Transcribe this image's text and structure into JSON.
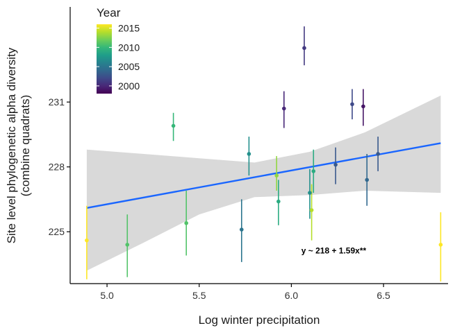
{
  "chart_data": {
    "type": "scatter",
    "xlabel": "Log winter precipitation",
    "ylabel_lines": [
      "Site level phylogenetic alpha diversity",
      "(combine quadrats)"
    ],
    "x_ticks": [
      5.0,
      5.5,
      6.0,
      6.5
    ],
    "x_tick_labels": [
      "5.0",
      "5.5",
      "6.0",
      "6.5"
    ],
    "y_ticks": [
      225,
      228,
      231
    ],
    "y_tick_labels": [
      "225",
      "228",
      "231"
    ],
    "xlim": [
      4.8,
      6.85
    ],
    "ylim": [
      222.6,
      235.4
    ],
    "legend": {
      "title": "Year",
      "placement": "top-left",
      "min": 1998,
      "max": 2016,
      "ticks": [
        2015,
        2010,
        2005,
        2000
      ],
      "tick_labels": [
        "2015",
        "2010",
        "2005",
        "2000"
      ],
      "colors": [
        "#440154",
        "#482878",
        "#3e4989",
        "#31688e",
        "#26828e",
        "#1f9e89",
        "#35b779",
        "#6ece58",
        "#b5de2b",
        "#fde725"
      ]
    },
    "points": [
      {
        "x": 4.89,
        "y": 224.6,
        "ylo": 222.8,
        "yhi": 226.2,
        "year": 2016
      },
      {
        "x": 5.11,
        "y": 224.4,
        "ylo": 222.9,
        "yhi": 225.8,
        "year": 2011
      },
      {
        "x": 5.36,
        "y": 229.9,
        "ylo": 229.2,
        "yhi": 230.5,
        "year": 2010
      },
      {
        "x": 5.43,
        "y": 225.4,
        "ylo": 223.9,
        "yhi": 226.9,
        "year": 2011
      },
      {
        "x": 5.73,
        "y": 225.1,
        "ylo": 223.6,
        "yhi": 226.5,
        "year": 2005
      },
      {
        "x": 5.77,
        "y": 228.6,
        "ylo": 227.6,
        "yhi": 229.4,
        "year": 2007
      },
      {
        "x": 5.92,
        "y": 227.6,
        "ylo": 226.9,
        "yhi": 228.5,
        "year": 2013
      },
      {
        "x": 5.93,
        "y": 226.4,
        "ylo": 225.3,
        "yhi": 227.4,
        "year": 2009
      },
      {
        "x": 5.96,
        "y": 230.7,
        "ylo": 229.8,
        "yhi": 231.5,
        "year": 2000
      },
      {
        "x": 6.07,
        "y": 233.5,
        "ylo": 232.7,
        "yhi": 234.5,
        "year": 2001
      },
      {
        "x": 6.1,
        "y": 226.8,
        "ylo": 225.6,
        "yhi": 227.9,
        "year": 2007
      },
      {
        "x": 6.11,
        "y": 226.0,
        "ylo": 224.6,
        "yhi": 227.2,
        "year": 2014
      },
      {
        "x": 6.12,
        "y": 227.8,
        "ylo": 226.8,
        "yhi": 228.8,
        "year": 2009
      },
      {
        "x": 6.24,
        "y": 228.1,
        "ylo": 227.2,
        "yhi": 228.9,
        "year": 2003
      },
      {
        "x": 6.33,
        "y": 230.9,
        "ylo": 230.2,
        "yhi": 231.6,
        "year": 2002
      },
      {
        "x": 6.39,
        "y": 230.8,
        "ylo": 229.9,
        "yhi": 231.6,
        "year": 1999
      },
      {
        "x": 6.41,
        "y": 227.4,
        "ylo": 226.2,
        "yhi": 228.6,
        "year": 2004
      },
      {
        "x": 6.47,
        "y": 228.6,
        "ylo": 227.8,
        "yhi": 229.4,
        "year": 2003
      },
      {
        "x": 6.81,
        "y": 224.4,
        "ylo": 222.7,
        "yhi": 225.9,
        "year": 2016
      }
    ],
    "fit": {
      "x": [
        4.89,
        6.81
      ],
      "y": [
        226.1,
        229.1
      ],
      "color": "#1a66ff"
    },
    "ci_band": {
      "x": [
        4.89,
        5.2,
        5.5,
        5.8,
        6.1,
        6.4,
        6.81
      ],
      "upper": [
        228.8,
        228.6,
        228.4,
        228.2,
        228.7,
        229.6,
        231.3
      ],
      "lower": [
        223.2,
        224.5,
        225.8,
        226.6,
        226.7,
        226.9,
        226.8
      ],
      "color": "#d9d9d9"
    },
    "annotation": {
      "text": "y ~ 218 + 1.59x**",
      "x": 6.23,
      "y": 224.0
    }
  }
}
